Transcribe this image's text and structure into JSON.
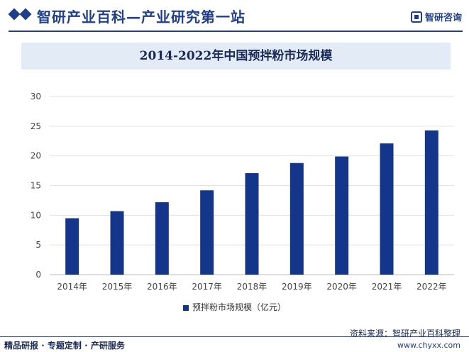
{
  "header": {
    "site_title": "智研产业百科—产业研究第一站",
    "brand": "智研咨询",
    "accent_color": "#1f3f8c"
  },
  "chart_data": {
    "type": "bar",
    "title": "2014-2022年中国预拌粉市场规模",
    "categories": [
      "2014年",
      "2015年",
      "2016年",
      "2017年",
      "2018年",
      "2019年",
      "2020年",
      "2021年",
      "2022年"
    ],
    "series": [
      {
        "name": "预拌粉市场规模（亿元）",
        "values": [
          9.5,
          10.7,
          12.2,
          14.2,
          17.1,
          18.8,
          19.9,
          22.1,
          24.3
        ],
        "color": "#14368a"
      }
    ],
    "yticks": [
      0,
      5,
      10,
      15,
      20,
      25,
      30
    ],
    "ylim": [
      0,
      30
    ],
    "grid": true,
    "legend_position": "bottom"
  },
  "footer": {
    "left": "精品研报 · 专题定制 · 产研服务",
    "source": "资料来源：智研产业百科整理",
    "url": "www.chyxx.com"
  }
}
